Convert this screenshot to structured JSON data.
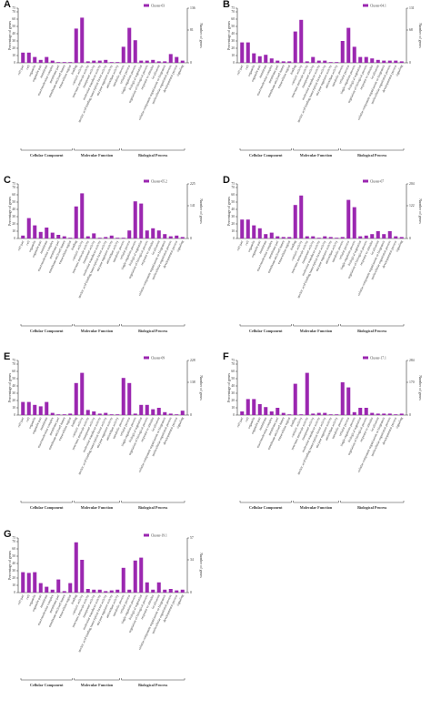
{
  "figure": {
    "ylabel_left": "Percentage of genes",
    "ylabel_right": "Number of genes",
    "groups": [
      "Cellular Component",
      "Molecular Function",
      "Biological Process"
    ],
    "bar_color": "#9b27b0"
  },
  "chart_data": [
    {
      "type": "bar",
      "panel_label": "A",
      "legend": "Cluster-03",
      "ylim": [
        0,
        75
      ],
      "yticks": [
        0,
        10,
        20,
        30,
        40,
        50,
        60,
        70,
        75
      ],
      "right_ticks": [
        "0",
        "81",
        "136"
      ],
      "categories": [
        "cell part",
        "cell",
        "organelle",
        "organelle part",
        "membrane",
        "macromolecular complex",
        "membrane part",
        "membrane-enclosed lumen",
        "extracellular region",
        "binding",
        "catalytic activity",
        "structural molecule activity",
        "transporter activity",
        "molecular transducer activity",
        "nucleic acid binding transcription factor activity",
        "enzyme regulator activity",
        "antioxidant activity",
        "metabolic process",
        "cellular process",
        "single-organism process",
        "biological regulation",
        "regulation of biological process",
        "response to stimulus",
        "localization",
        "cellular component organization or biogenesis",
        "multicellular organismal process",
        "developmental process",
        "signaling"
      ],
      "group_sizes": [
        9,
        8,
        11
      ],
      "values": [
        14,
        14,
        8,
        4,
        8,
        3,
        1,
        1,
        1,
        47,
        62,
        2,
        3,
        3,
        4,
        1,
        1,
        22,
        48,
        31,
        3,
        3,
        4,
        2,
        2,
        12,
        8,
        3
      ]
    },
    {
      "type": "bar",
      "panel_label": "B",
      "legend": "Cluster-04.1",
      "ylim": [
        0,
        75
      ],
      "yticks": [
        0,
        10,
        20,
        30,
        40,
        50,
        60,
        70,
        75
      ],
      "right_ticks": [
        "0",
        "68",
        "131"
      ],
      "categories": [
        "cell part",
        "cell",
        "organelle",
        "organelle part",
        "membrane",
        "macromolecular complex",
        "membrane part",
        "membrane-enclosed lumen",
        "extracellular region",
        "binding",
        "catalytic activity",
        "structural molecule activity",
        "transporter activity",
        "molecular transducer activity",
        "nucleic acid binding transcription factor activity",
        "enzyme regulator activity",
        "antioxidant activity",
        "metabolic process",
        "cellular process",
        "single-organism process",
        "biological regulation",
        "regulation of biological process",
        "response to stimulus",
        "localization",
        "cellular component organization or biogenesis",
        "multicellular organismal process",
        "developmental process",
        "signaling"
      ],
      "group_sizes": [
        9,
        8,
        11
      ],
      "values": [
        28,
        28,
        13,
        9,
        11,
        6,
        3,
        2,
        2,
        43,
        59,
        2,
        8,
        3,
        3,
        1,
        1,
        30,
        48,
        22,
        8,
        8,
        6,
        4,
        3,
        3,
        3,
        2
      ]
    },
    {
      "type": "bar",
      "panel_label": "C",
      "legend": "Cluster-05.2",
      "ylim": [
        0,
        75
      ],
      "yticks": [
        0,
        10,
        20,
        30,
        40,
        50,
        60,
        70,
        75
      ],
      "right_ticks": [
        "0",
        "141",
        "225"
      ],
      "categories": [
        "cell part",
        "cell",
        "organelle",
        "organelle part",
        "membrane",
        "macromolecular complex",
        "membrane part",
        "membrane-enclosed lumen",
        "extracellular region",
        "binding",
        "catalytic activity",
        "structural molecule activity",
        "transporter activity",
        "molecular transducer activity",
        "nucleic acid binding transcription factor activity",
        "enzyme regulator activity",
        "antioxidant activity",
        "metabolic process",
        "cellular process",
        "single-organism process",
        "biological regulation",
        "regulation of biological process",
        "response to stimulus",
        "localization",
        "cellular component organization or biogenesis",
        "multicellular organismal process",
        "developmental process",
        "signaling"
      ],
      "group_sizes": [
        9,
        8,
        11
      ],
      "values": [
        4,
        28,
        18,
        9,
        15,
        8,
        5,
        3,
        1,
        44,
        62,
        3,
        7,
        1,
        2,
        4,
        1,
        1,
        11,
        51,
        48,
        11,
        14,
        11,
        6,
        3,
        4,
        2
      ]
    },
    {
      "type": "bar",
      "panel_label": "D",
      "legend": "Cluster-07",
      "ylim": [
        0,
        75
      ],
      "yticks": [
        0,
        10,
        20,
        30,
        40,
        50,
        60,
        70,
        75
      ],
      "right_ticks": [
        "0",
        "122",
        "204"
      ],
      "categories": [
        "cell part",
        "cell",
        "organelle",
        "organelle part",
        "membrane",
        "macromolecular complex",
        "membrane part",
        "membrane-enclosed lumen",
        "extracellular region",
        "binding",
        "catalytic activity",
        "structural molecule activity",
        "transporter activity",
        "molecular transducer activity",
        "nucleic acid binding transcription factor activity",
        "enzyme regulator activity",
        "antioxidant activity",
        "metabolic process",
        "cellular process",
        "single-organism process",
        "biological regulation",
        "regulation of biological process",
        "response to stimulus",
        "localization",
        "cellular component organization or biogenesis",
        "multicellular organismal process",
        "developmental process",
        "signaling"
      ],
      "group_sizes": [
        9,
        8,
        11
      ],
      "values": [
        26,
        26,
        18,
        14,
        6,
        8,
        3,
        2,
        2,
        46,
        59,
        3,
        3,
        1,
        3,
        2,
        1,
        2,
        53,
        43,
        3,
        4,
        6,
        10,
        6,
        10,
        3,
        2
      ]
    },
    {
      "type": "bar",
      "panel_label": "E",
      "legend": "Cluster-09",
      "ylim": [
        0,
        75
      ],
      "yticks": [
        0,
        10,
        20,
        30,
        40,
        50,
        60,
        70,
        75
      ],
      "right_ticks": [
        "0",
        "138",
        "228"
      ],
      "categories": [
        "cell part",
        "cell",
        "organelle",
        "organelle part",
        "membrane",
        "macromolecular complex",
        "membrane part",
        "membrane-enclosed lumen",
        "extracellular region",
        "binding",
        "catalytic activity",
        "structural molecule activity",
        "transporter activity",
        "molecular transducer activity",
        "nucleic acid binding transcription factor activity",
        "enzyme regulator activity",
        "antioxidant activity",
        "metabolic process",
        "cellular process",
        "single-organism process",
        "biological regulation",
        "regulation of biological process",
        "response to stimulus",
        "localization",
        "cellular component organization or biogenesis",
        "multicellular organismal process",
        "developmental process",
        "signaling"
      ],
      "group_sizes": [
        9,
        8,
        11
      ],
      "values": [
        18,
        18,
        14,
        12,
        18,
        3,
        1,
        1,
        2,
        44,
        58,
        7,
        5,
        2,
        3,
        1,
        1,
        51,
        44,
        2,
        14,
        14,
        8,
        10,
        4,
        2,
        1,
        6
      ]
    },
    {
      "type": "bar",
      "panel_label": "F",
      "legend": "Cluster-17.1",
      "ylim": [
        0,
        75
      ],
      "yticks": [
        0,
        10,
        20,
        30,
        40,
        50,
        60,
        70,
        75
      ],
      "right_ticks": [
        "0",
        "170",
        "284"
      ],
      "categories": [
        "cell part",
        "cell",
        "organelle",
        "organelle part",
        "membrane",
        "macromolecular complex",
        "membrane part",
        "membrane-enclosed lumen",
        "extracellular region",
        "binding",
        "catalytic activity",
        "structural molecule activity",
        "transporter activity",
        "molecular transducer activity",
        "nucleic acid binding transcription factor activity",
        "enzyme regulator activity",
        "antioxidant activity",
        "metabolic process",
        "cellular process",
        "single-organism process",
        "biological regulation",
        "regulation of biological process",
        "response to stimulus",
        "localization",
        "cellular component organization or biogenesis",
        "multicellular organismal process",
        "developmental process",
        "signaling"
      ],
      "group_sizes": [
        9,
        8,
        11
      ],
      "values": [
        5,
        22,
        22,
        15,
        11,
        5,
        10,
        3,
        1,
        43,
        1,
        58,
        2,
        3,
        3,
        1,
        1,
        45,
        38,
        4,
        10,
        10,
        3,
        2,
        2,
        2,
        1,
        2
      ]
    },
    {
      "type": "bar",
      "panel_label": "G",
      "legend": "Cluster-19.1",
      "ylim": [
        0,
        75
      ],
      "yticks": [
        0,
        10,
        20,
        30,
        40,
        50,
        60,
        70,
        75
      ],
      "right_ticks": [
        "0",
        "34",
        "57"
      ],
      "categories": [
        "cell part",
        "cell",
        "organelle",
        "organelle part",
        "membrane",
        "macromolecular complex",
        "membrane part",
        "membrane-enclosed lumen",
        "extracellular region",
        "binding",
        "catalytic activity",
        "structural molecule activity",
        "transporter activity",
        "molecular transducer activity",
        "nucleic acid binding transcription factor activity",
        "enzyme regulator activity",
        "antioxidant activity",
        "metabolic process",
        "cellular process",
        "single-organism process",
        "biological regulation",
        "regulation of biological process",
        "response to stimulus",
        "localization",
        "cellular component organization or biogenesis",
        "multicellular organismal process",
        "developmental process",
        "signaling"
      ],
      "group_sizes": [
        9,
        8,
        11
      ],
      "values": [
        28,
        27,
        28,
        13,
        8,
        4,
        18,
        2,
        13,
        69,
        45,
        5,
        4,
        4,
        2,
        3,
        4,
        34,
        4,
        44,
        48,
        14,
        4,
        14,
        4,
        5,
        3,
        4
      ]
    }
  ]
}
